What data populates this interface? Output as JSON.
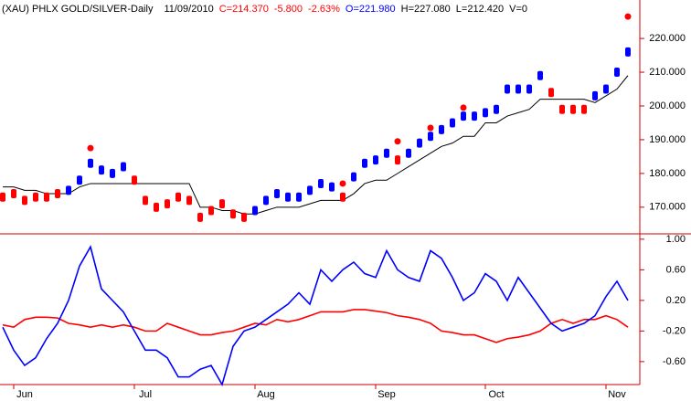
{
  "chart_data": [
    {
      "type": "price-bars",
      "title_parts": [
        {
          "text": "(XAU) PHLX GOLD/SILVER-Daily",
          "color": "#000000"
        },
        {
          "text": "11/09/2010",
          "color": "#000000"
        },
        {
          "text": "C=214.370",
          "color": "#ff0000"
        },
        {
          "text": "-5.800",
          "color": "#ff0000"
        },
        {
          "text": "-2.63%",
          "color": "#ff0000"
        },
        {
          "text": "O=221.980",
          "color": "#0000ff"
        },
        {
          "text": "H=227.080",
          "color": "#000000"
        },
        {
          "text": "L=212.420",
          "color": "#000000"
        },
        {
          "text": "V=0",
          "color": "#000000"
        }
      ],
      "categories": [
        null,
        "Jun",
        null,
        null,
        null,
        null,
        null,
        null,
        null,
        null,
        null,
        null,
        "Jul",
        null,
        null,
        null,
        null,
        null,
        null,
        null,
        null,
        null,
        null,
        "Aug",
        null,
        null,
        null,
        null,
        null,
        null,
        null,
        null,
        null,
        null,
        "Sep",
        null,
        null,
        null,
        null,
        null,
        null,
        null,
        null,
        null,
        "Oct",
        null,
        null,
        null,
        null,
        null,
        null,
        null,
        null,
        null,
        null,
        "Nov",
        null,
        null
      ],
      "values": [
        173,
        174,
        172,
        173,
        173,
        174,
        175,
        178,
        183,
        181,
        180,
        182,
        178,
        172,
        170,
        171,
        173,
        172,
        167,
        169,
        171,
        168,
        167,
        169,
        172,
        174,
        173,
        173,
        175,
        177,
        176,
        173,
        179,
        183,
        184,
        186,
        184,
        186,
        189,
        191,
        193,
        195,
        197,
        197,
        198,
        199,
        205,
        205,
        205,
        209,
        204,
        199,
        199,
        199,
        203,
        205,
        210,
        216
      ],
      "bar_colors": [
        "#ff0000",
        "#ff0000",
        "#ff0000",
        "#ff0000",
        "#ff0000",
        "#ff0000",
        "#0000ff",
        "#0000ff",
        "#0000ff",
        "#0000ff",
        "#0000ff",
        "#0000ff",
        "#ff0000",
        "#ff0000",
        "#ff0000",
        "#ff0000",
        "#ff0000",
        "#ff0000",
        "#ff0000",
        "#ff0000",
        "#ff0000",
        "#ff0000",
        "#ff0000",
        "#0000ff",
        "#0000ff",
        "#0000ff",
        "#0000ff",
        "#0000ff",
        "#0000ff",
        "#0000ff",
        "#0000ff",
        "#ff0000",
        "#0000ff",
        "#0000ff",
        "#0000ff",
        "#0000ff",
        "#ff0000",
        "#0000ff",
        "#0000ff",
        "#0000ff",
        "#0000ff",
        "#0000ff",
        "#0000ff",
        "#0000ff",
        "#0000ff",
        "#0000ff",
        "#0000ff",
        "#0000ff",
        "#0000ff",
        "#0000ff",
        "#ff0000",
        "#ff0000",
        "#ff0000",
        "#ff0000",
        "#0000ff",
        "#0000ff",
        "#0000ff",
        "#0000ff"
      ],
      "stop": {
        "color": "#000000",
        "values": [
          176,
          176,
          175,
          175,
          174,
          174,
          174,
          176,
          177,
          177,
          177,
          177,
          177,
          177,
          177,
          177,
          177,
          177,
          170,
          170,
          169,
          169,
          168,
          168,
          169,
          170,
          170,
          170,
          171,
          172,
          172,
          172,
          174,
          177,
          178,
          178,
          180,
          182,
          184,
          186,
          188,
          189,
          191,
          191,
          195,
          195,
          197,
          198,
          199,
          202,
          202,
          202,
          202,
          202,
          201,
          203,
          205,
          209
        ]
      },
      "dots": {
        "color": "#ff0000",
        "x": [
          8,
          31,
          36,
          39,
          42,
          57
        ],
        "values": [
          187.5,
          177,
          189.5,
          193.5,
          199.5,
          226.5
        ]
      },
      "ylim": [
        162.1,
        231.4
      ],
      "yticks": [
        {
          "value": 170,
          "label": "170.000"
        },
        {
          "value": 180,
          "label": "180.000"
        },
        {
          "value": 190,
          "label": "190.000"
        },
        {
          "value": 200,
          "label": "200.000"
        },
        {
          "value": 210,
          "label": "210.000"
        },
        {
          "value": 220,
          "label": "220.000"
        }
      ]
    },
    {
      "type": "line",
      "series": [
        {
          "color": "#ff0000",
          "values": [
            -0.12,
            -0.15,
            -0.05,
            -0.02,
            -0.02,
            -0.03,
            -0.1,
            -0.12,
            -0.15,
            -0.12,
            -0.15,
            -0.12,
            -0.15,
            -0.2,
            -0.2,
            -0.1,
            -0.15,
            -0.2,
            -0.25,
            -0.25,
            -0.22,
            -0.2,
            -0.15,
            -0.1,
            -0.12,
            -0.05,
            -0.08,
            -0.05,
            0.0,
            0.05,
            0.05,
            0.05,
            0.08,
            0.08,
            0.06,
            0.04,
            0.0,
            -0.02,
            -0.05,
            -0.1,
            -0.2,
            -0.22,
            -0.25,
            -0.25,
            -0.3,
            -0.35,
            -0.3,
            -0.28,
            -0.25,
            -0.2,
            -0.1,
            -0.05,
            -0.1,
            -0.05,
            -0.05,
            0.0,
            -0.05,
            -0.15
          ]
        },
        {
          "color": "#0000ff",
          "values": [
            -0.15,
            -0.45,
            -0.65,
            -0.55,
            -0.3,
            -0.1,
            0.2,
            0.65,
            0.9,
            0.35,
            0.2,
            0.05,
            -0.2,
            -0.45,
            -0.45,
            -0.55,
            -0.8,
            -0.8,
            -0.7,
            -0.65,
            -0.9,
            -0.4,
            -0.2,
            -0.15,
            -0.05,
            0.05,
            0.15,
            0.3,
            0.15,
            0.6,
            0.45,
            0.6,
            0.7,
            0.55,
            0.5,
            0.85,
            0.6,
            0.5,
            0.45,
            0.85,
            0.75,
            0.5,
            0.2,
            0.3,
            0.55,
            0.45,
            0.2,
            0.5,
            0.3,
            0.1,
            -0.1,
            -0.2,
            -0.15,
            -0.1,
            0.0,
            0.25,
            0.45,
            0.2
          ]
        }
      ],
      "ylim": [
        -0.9,
        1.07
      ],
      "yticks": [
        {
          "value": 1,
          "label": "1.00"
        },
        {
          "value": 0.6,
          "label": "0.60"
        },
        {
          "value": 0.2,
          "label": "0.20"
        },
        {
          "value": -0.2,
          "label": "-0.20"
        },
        {
          "value": -0.6,
          "label": "-0.60"
        }
      ]
    }
  ]
}
